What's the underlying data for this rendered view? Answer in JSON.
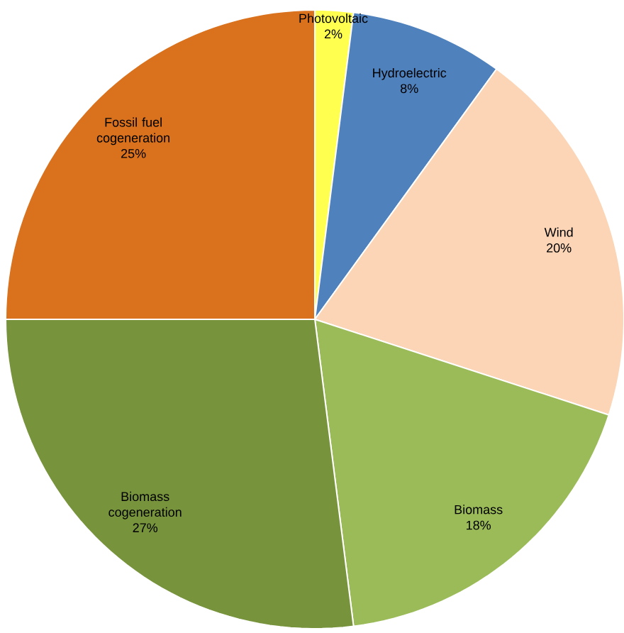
{
  "chart_data": {
    "type": "pie",
    "categories": [
      "Photovoltaic",
      "Hydroelectric",
      "Wind",
      "Biomass",
      "Biomass cogeneration",
      "Fossil fuel cogeneration"
    ],
    "values": [
      2,
      8,
      20,
      18,
      27,
      25
    ],
    "value_labels": [
      "2%",
      "8%",
      "20%",
      "18%",
      "27%",
      "25%"
    ],
    "colors": [
      "#ffff4f",
      "#4f81bd",
      "#fbd5b5",
      "#9bbb59",
      "#77933c",
      "#d9711d"
    ]
  }
}
